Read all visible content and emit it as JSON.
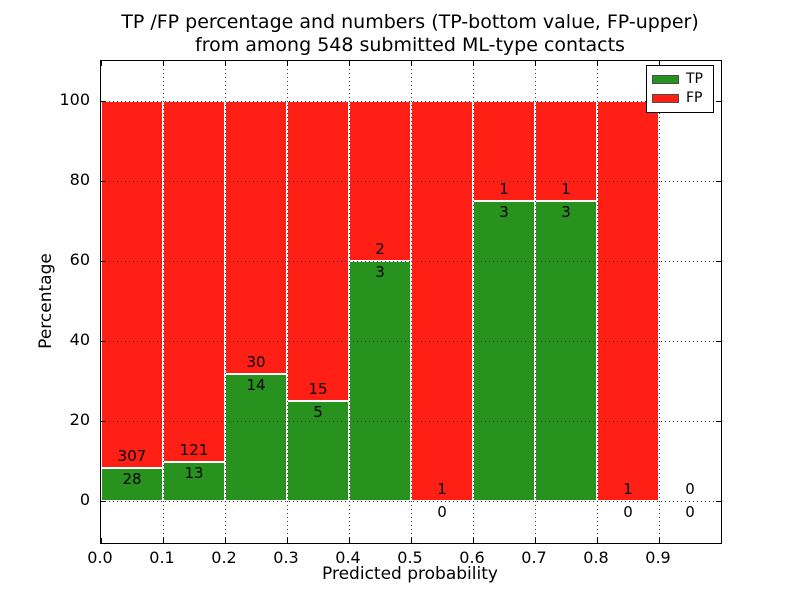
{
  "title": {
    "line1": "TP /FP percentage and numbers (TP-bottom value, FP-upper)",
    "line2": "from among 548 submitted ML-type contacts"
  },
  "axes": {
    "xlabel": "Predicted probability",
    "ylabel": "Percentage"
  },
  "legend": {
    "items": [
      {
        "label": "TP",
        "color": "#28921e"
      },
      {
        "label": "FP",
        "color": "#ff1f15"
      }
    ]
  },
  "colors": {
    "tp": "#28921e",
    "fp": "#ff1f15",
    "grid": "#3a3a3a"
  },
  "chart_data": {
    "type": "bar",
    "stacked": true,
    "normalized": "each bin scaled so TP+FP = 100%",
    "title": "TP /FP percentage and numbers (TP-bottom value, FP-upper) from among 548 submitted ML-type contacts",
    "xlabel": "Predicted probability",
    "ylabel": "Percentage",
    "xlim": [
      0.0,
      1.0
    ],
    "ylim": [
      -10.5,
      110.0
    ],
    "x_ticks": [
      "0.0",
      "0.1",
      "0.2",
      "0.3",
      "0.4",
      "0.5",
      "0.6",
      "0.7",
      "0.8",
      "0.9"
    ],
    "y_ticks": [
      0,
      20,
      40,
      60,
      80,
      100
    ],
    "grid": true,
    "grid_style": "dotted",
    "legend_position": "upper right",
    "total_contacts": 548,
    "series": [
      {
        "name": "TP",
        "values": [
          28,
          13,
          14,
          5,
          3,
          0,
          3,
          3,
          0,
          0
        ]
      },
      {
        "name": "FP",
        "values": [
          307,
          121,
          30,
          15,
          2,
          1,
          1,
          1,
          1,
          0
        ]
      }
    ],
    "bins": [
      {
        "range": [
          0.0,
          0.1
        ],
        "tp": 28,
        "fp": 307,
        "tp_percent": 8.4
      },
      {
        "range": [
          0.1,
          0.2
        ],
        "tp": 13,
        "fp": 121,
        "tp_percent": 9.7
      },
      {
        "range": [
          0.2,
          0.3
        ],
        "tp": 14,
        "fp": 30,
        "tp_percent": 31.8
      },
      {
        "range": [
          0.3,
          0.4
        ],
        "tp": 5,
        "fp": 15,
        "tp_percent": 25.0
      },
      {
        "range": [
          0.4,
          0.5
        ],
        "tp": 3,
        "fp": 2,
        "tp_percent": 60.0
      },
      {
        "range": [
          0.5,
          0.6
        ],
        "tp": 0,
        "fp": 1,
        "tp_percent": 0.0
      },
      {
        "range": [
          0.6,
          0.7
        ],
        "tp": 3,
        "fp": 1,
        "tp_percent": 75.0
      },
      {
        "range": [
          0.7,
          0.8
        ],
        "tp": 3,
        "fp": 1,
        "tp_percent": 75.0
      },
      {
        "range": [
          0.8,
          0.9
        ],
        "tp": 0,
        "fp": 1,
        "tp_percent": 0.0
      },
      {
        "range": [
          0.9,
          1.0
        ],
        "tp": 0,
        "fp": 0,
        "tp_percent": null
      }
    ]
  }
}
